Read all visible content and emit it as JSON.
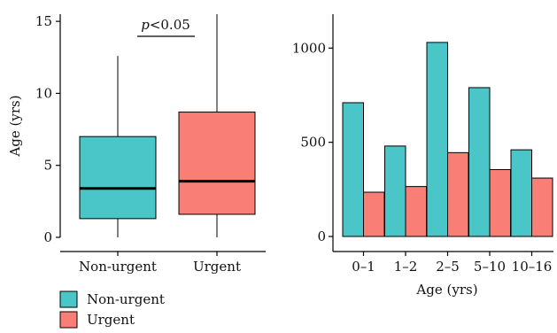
{
  "colors": {
    "non_urgent": "#4BC6C8",
    "urgent": "#F87E76",
    "axis": "#000000"
  },
  "legend": {
    "items": [
      {
        "label": "Non-urgent",
        "color": "#4BC6C8"
      },
      {
        "label": "Urgent",
        "color": "#F87E76"
      }
    ]
  },
  "chart_data": [
    {
      "type": "box",
      "ylabel": "Age (yrs)",
      "ylim": [
        0,
        15.5
      ],
      "yticks": [
        0,
        5,
        10,
        15
      ],
      "categories": [
        "Non-urgent",
        "Urgent"
      ],
      "series": [
        {
          "name": "Non-urgent",
          "min": 0,
          "q1": 1.3,
          "median": 3.4,
          "q3": 7.0,
          "max": 12.6
        },
        {
          "name": "Urgent",
          "min": 0,
          "q1": 1.6,
          "median": 3.9,
          "q3": 8.7,
          "max": 15.5
        }
      ],
      "annotation": {
        "prefix": "p",
        "text": "<0.05"
      },
      "grid": false
    },
    {
      "type": "bar",
      "xlabel": "Age (yrs)",
      "ylabel": "",
      "ylim": [
        0,
        1180
      ],
      "yticks": [
        0,
        500,
        1000
      ],
      "categories": [
        "0–1",
        "1–2",
        "2–5",
        "5–10",
        "10–16"
      ],
      "series": [
        {
          "name": "Non-urgent",
          "values": [
            710,
            480,
            1030,
            790,
            460
          ]
        },
        {
          "name": "Urgent",
          "values": [
            235,
            265,
            445,
            355,
            310
          ]
        }
      ],
      "grid": false
    }
  ]
}
